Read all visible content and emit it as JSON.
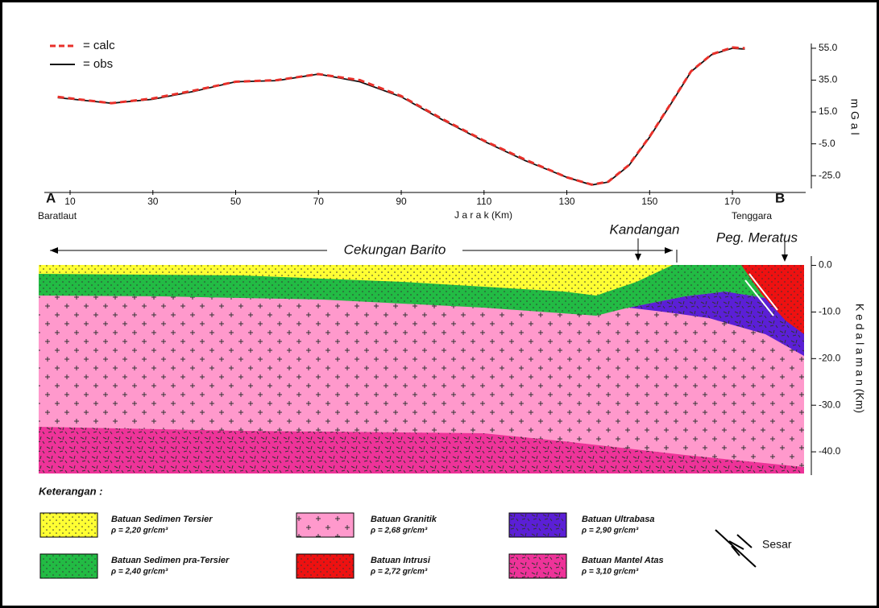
{
  "chart_data": [
    {
      "type": "line",
      "x_label": "J a r a k  (Km)",
      "y_label": "m G a l",
      "annotations": {
        "A": "A",
        "A_name": "Baratlaut",
        "B": "B",
        "B_name": "Tenggara"
      },
      "x": [
        7,
        20,
        30,
        40,
        50,
        60,
        70,
        80,
        90,
        100,
        110,
        120,
        130,
        136,
        140,
        145,
        150,
        155,
        160,
        165,
        170,
        173
      ],
      "series": [
        {
          "name": "= calc",
          "color": "#e8302a",
          "dash": true,
          "values": [
            24.5,
            20.5,
            23.5,
            28.5,
            34,
            35,
            38.8,
            35,
            25,
            10.5,
            -3,
            -15,
            -26,
            -30.6,
            -28.8,
            -18.3,
            -0.5,
            19.8,
            40.5,
            51.2,
            55.5,
            55
          ]
        },
        {
          "name": "= obs",
          "color": "#111111",
          "dash": false,
          "values": [
            24,
            20.5,
            23,
            28,
            34,
            34.7,
            38.8,
            34,
            24.5,
            10,
            -3.4,
            -15.6,
            -26,
            -30.8,
            -29,
            -18.6,
            -0.8,
            19.5,
            40.3,
            51,
            55,
            54.5
          ]
        }
      ],
      "xlim": [
        5,
        182
      ],
      "xticks": [
        10,
        30,
        50,
        70,
        90,
        110,
        130,
        150,
        170
      ],
      "ylim": [
        -33,
        58
      ],
      "yticks": [
        {
          "value": -25,
          "label": "-25.0"
        },
        {
          "value": -5,
          "label": "-5.0"
        },
        {
          "value": 15,
          "label": "15.0"
        },
        {
          "value": 35,
          "label": "35.0"
        },
        {
          "value": 55,
          "label": "55.0"
        }
      ]
    },
    {
      "type": "section",
      "title": "Cekungan Barito",
      "labels": {
        "kandangan": "Kandangan",
        "meratus": "Peg. Meratus"
      },
      "y_label": "K e d a l a m a n (Km)",
      "ylim": [
        -45,
        2
      ],
      "yticks": [
        {
          "value": 0,
          "label": "0.0"
        },
        {
          "value": -10,
          "label": "-10.0"
        },
        {
          "value": -20,
          "label": "-20.0"
        },
        {
          "value": -30,
          "label": "-30.0"
        },
        {
          "value": -40,
          "label": "-40.0"
        }
      ],
      "legend": {
        "title": "Keterangan :",
        "fault": "Sesar",
        "items": [
          {
            "name": "Batuan Sedimen Tersier",
            "density": "ρ = 2,20 gr/cm³",
            "color": "#ffff33"
          },
          {
            "name": "Batuan Granitik",
            "density": "ρ = 2,68 gr/cm³",
            "color": "#ff99cc"
          },
          {
            "name": "Batuan Ultrabasa",
            "density": "ρ = 2,90 gr/cm³",
            "color": "#5b1fd6"
          },
          {
            "name": "Batuan Sedimen pra-Tersier",
            "density": "ρ = 2,40 gr/cm³",
            "color": "#22bb44"
          },
          {
            "name": "Batuan Intrusi",
            "density": "ρ = 2,72 gr/cm³",
            "color": "#ee1111"
          },
          {
            "name": "Batuan Mantel Atas",
            "density": "ρ = 3,10 gr/cm³",
            "color": "#ee3399"
          }
        ]
      }
    }
  ]
}
